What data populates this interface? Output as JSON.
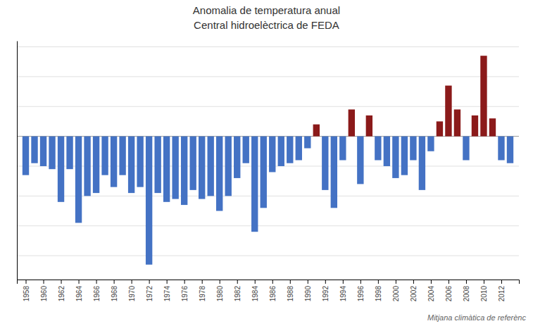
{
  "chart_data": {
    "type": "bar",
    "title": "Anomalia de temperatura anual",
    "subtitle": "Central hidroelèctrica de FEDA",
    "annotations": [
      "Mitjana climàtica de referènc"
    ],
    "x": [
      1958,
      1959,
      1960,
      1961,
      1962,
      1963,
      1964,
      1965,
      1966,
      1967,
      1968,
      1969,
      1970,
      1971,
      1972,
      1973,
      1974,
      1975,
      1976,
      1977,
      1978,
      1979,
      1980,
      1981,
      1982,
      1983,
      1984,
      1985,
      1986,
      1987,
      1988,
      1989,
      1990,
      1991,
      1992,
      1993,
      1994,
      1995,
      1996,
      1997,
      1998,
      1999,
      2000,
      2001,
      2002,
      2003,
      2004,
      2005,
      2006,
      2007,
      2008,
      2009,
      2010,
      2011,
      2012,
      2013
    ],
    "values": [
      -0.65,
      -0.45,
      -0.5,
      -0.55,
      -1.1,
      -0.55,
      -1.45,
      -1.0,
      -0.95,
      -0.65,
      -0.85,
      -0.65,
      -0.95,
      -0.85,
      -2.15,
      -0.95,
      -1.1,
      -1.05,
      -1.15,
      -0.9,
      -1.05,
      -1.0,
      -1.25,
      -1.0,
      -0.7,
      -0.45,
      -1.6,
      -1.2,
      -0.6,
      -0.5,
      -0.45,
      -0.4,
      -0.2,
      0.2,
      -0.9,
      -1.2,
      -0.4,
      0.45,
      -0.8,
      0.35,
      -0.4,
      -0.5,
      -0.7,
      -0.65,
      -0.4,
      -0.9,
      -0.25,
      0.25,
      0.85,
      0.45,
      -0.4,
      0.35,
      1.35,
      0.3,
      -0.4,
      -0.45
    ],
    "colors": [
      "#4472C4",
      "#4472C4",
      "#4472C4",
      "#4472C4",
      "#4472C4",
      "#4472C4",
      "#4472C4",
      "#4472C4",
      "#4472C4",
      "#4472C4",
      "#4472C4",
      "#4472C4",
      "#4472C4",
      "#4472C4",
      "#4472C4",
      "#4472C4",
      "#4472C4",
      "#4472C4",
      "#4472C4",
      "#4472C4",
      "#4472C4",
      "#4472C4",
      "#4472C4",
      "#4472C4",
      "#4472C4",
      "#4472C4",
      "#4472C4",
      "#4472C4",
      "#4472C4",
      "#4472C4",
      "#4472C4",
      "#4472C4",
      "#4472C4",
      "#8B1A1A",
      "#4472C4",
      "#4472C4",
      "#4472C4",
      "#8B1A1A",
      "#4472C4",
      "#8B1A1A",
      "#4472C4",
      "#4472C4",
      "#4472C4",
      "#4472C4",
      "#4472C4",
      "#4472C4",
      "#4472C4",
      "#8B1A1A",
      "#8B1A1A",
      "#8B1A1A",
      "#4472C4",
      "#8B1A1A",
      "#8B1A1A",
      "#8B1A1A",
      "#4472C4",
      "#4472C4"
    ],
    "xlim": [
      1957,
      2014
    ],
    "xticks": [
      1958,
      1960,
      1962,
      1964,
      1966,
      1968,
      1970,
      1972,
      1974,
      1976,
      1978,
      1980,
      1982,
      1984,
      1986,
      1988,
      1990,
      1992,
      1994,
      1996,
      1998,
      2000,
      2002,
      2004,
      2006,
      2008,
      2010,
      2012
    ],
    "ylim": [
      -2.4,
      1.6
    ],
    "yticks": [
      -2.0,
      -1.5,
      -1.0,
      -0.5,
      0.0,
      0.5,
      1.0,
      1.5
    ],
    "grid": true,
    "tick_labels": "x"
  }
}
